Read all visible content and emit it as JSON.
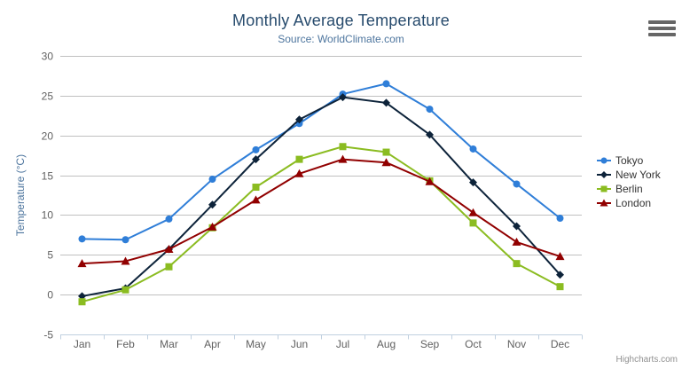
{
  "chart_data": {
    "type": "line",
    "title": "Monthly Average Temperature",
    "subtitle": "Source: WorldClimate.com",
    "xlabel": "",
    "ylabel": "Temperature (°C)",
    "ylim": [
      -5,
      30
    ],
    "ytick_interval": 5,
    "grid": true,
    "legend_position": "right",
    "categories": [
      "Jan",
      "Feb",
      "Mar",
      "Apr",
      "May",
      "Jun",
      "Jul",
      "Aug",
      "Sep",
      "Oct",
      "Nov",
      "Dec"
    ],
    "series": [
      {
        "name": "Tokyo",
        "color": "#2f7ed8",
        "symbol": "circle",
        "values": [
          7.0,
          6.9,
          9.5,
          14.5,
          18.2,
          21.5,
          25.2,
          26.5,
          23.3,
          18.3,
          13.9,
          9.6
        ]
      },
      {
        "name": "New York",
        "color": "#0d233a",
        "symbol": "diamond",
        "values": [
          -0.2,
          0.8,
          5.7,
          11.3,
          17.0,
          22.0,
          24.8,
          24.1,
          20.1,
          14.1,
          8.6,
          2.5
        ]
      },
      {
        "name": "Berlin",
        "color": "#8bbc21",
        "symbol": "square",
        "values": [
          -0.9,
          0.6,
          3.5,
          8.4,
          13.5,
          17.0,
          18.6,
          17.9,
          14.3,
          9.0,
          3.9,
          1.0
        ]
      },
      {
        "name": "London",
        "color": "#910000",
        "symbol": "triangle",
        "values": [
          3.9,
          4.2,
          5.7,
          8.5,
          11.9,
          15.2,
          17.0,
          16.6,
          14.2,
          10.3,
          6.6,
          4.8
        ]
      }
    ],
    "grid_color": "#C0C0C0",
    "axis_line_color": "#C0D0E0",
    "tick_label_color": "#606060",
    "axis_title_color": "#4d759e"
  },
  "credits": "Highcharts.com",
  "icons": {
    "context_menu": "hamburger-icon"
  }
}
